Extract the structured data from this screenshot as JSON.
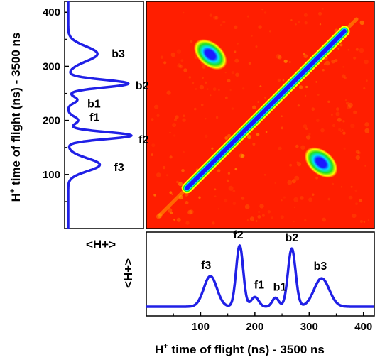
{
  "chart_data": [
    {
      "type": "heatmap",
      "title": "",
      "xlim": [
        0,
        420
      ],
      "ylim": [
        0,
        420
      ],
      "colormap": [
        "#1a1aff",
        "#00e0ff",
        "#20e020",
        "#ffff00",
        "#ff1e00"
      ],
      "background_color": "#ff1e00",
      "features": [
        {
          "name": "diagonal autocorrelation line",
          "from": [
            75,
            75
          ],
          "to": [
            365,
            365
          ]
        },
        {
          "name": "off-diagonal island",
          "center_x": 118,
          "center_y": 322
        },
        {
          "name": "off-diagonal island",
          "center_x": 322,
          "center_y": 122
        }
      ]
    },
    {
      "type": "line",
      "orientation": "vertical",
      "xlabel": "<H+>",
      "ylabel": "H+ time of flight (ns) - 3500 ns",
      "ylim": [
        0,
        420
      ],
      "yticks": [
        100,
        200,
        300,
        400
      ],
      "line_color": "#2020e6",
      "peaks": [
        {
          "label": "b3",
          "center": 323,
          "amplitude": 0.38,
          "width": 14
        },
        {
          "label": "b2",
          "center": 268,
          "amplitude": 0.78,
          "width": 7
        },
        {
          "label": "b1",
          "center": 238,
          "amplitude": 0.12,
          "width": 6
        },
        {
          "label": "f1",
          "center": 200,
          "amplitude": 0.13,
          "width": 7
        },
        {
          "label": "f2",
          "center": 172,
          "amplitude": 0.82,
          "width": 6.5
        },
        {
          "label": "f3",
          "center": 118,
          "amplitude": 0.41,
          "width": 12
        }
      ]
    },
    {
      "type": "line",
      "xlabel": "H+ time of flight (ns) -  3500 ns",
      "ylabel": "<H+>",
      "xlim": [
        0,
        420
      ],
      "xticks": [
        100,
        200,
        300,
        400
      ],
      "line_color": "#2020e6",
      "peaks": [
        {
          "label": "f3",
          "center": 118,
          "amplitude": 0.41,
          "width": 12
        },
        {
          "label": "f2",
          "center": 172,
          "amplitude": 0.82,
          "width": 6.5
        },
        {
          "label": "f1",
          "center": 200,
          "amplitude": 0.13,
          "width": 7
        },
        {
          "label": "b1",
          "center": 238,
          "amplitude": 0.12,
          "width": 6
        },
        {
          "label": "b2",
          "center": 268,
          "amplitude": 0.78,
          "width": 7
        },
        {
          "label": "b3",
          "center": 323,
          "amplitude": 0.38,
          "width": 14
        }
      ]
    }
  ]
}
